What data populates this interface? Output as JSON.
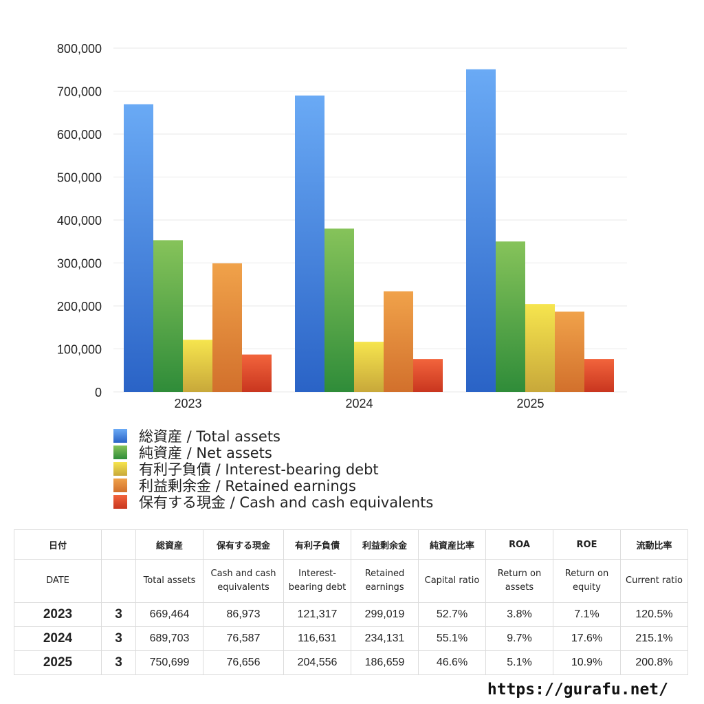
{
  "chart_data": {
    "type": "bar",
    "categories": [
      "2023",
      "2024",
      "2025"
    ],
    "series": [
      {
        "name": "総資産 / Total assets",
        "values": [
          669464,
          689703,
          750699
        ]
      },
      {
        "name": "純資産 / Net assets",
        "values": [
          353000,
          380000,
          350000
        ]
      },
      {
        "name": "有利子負債 / Interest-bearing debt",
        "values": [
          121317,
          116631,
          204556
        ]
      },
      {
        "name": "利益剰余金 / Retained earnings",
        "values": [
          299019,
          234131,
          186659
        ]
      },
      {
        "name": "保有する現金 /  Cash and cash equivalents",
        "values": [
          86973,
          76587,
          76656
        ]
      }
    ],
    "ylim": [
      0,
      800000
    ],
    "yticks": [
      "0",
      "100,000",
      "200,000",
      "300,000",
      "400,000",
      "500,000",
      "600,000",
      "700,000",
      "800,000"
    ],
    "grid": true,
    "legend_position": "bottom",
    "colors": {
      "total_assets": [
        "#6aaaf5",
        "#2a63c6"
      ],
      "net_assets": [
        "#86c35a",
        "#2f8c39"
      ],
      "interest_debt": [
        "#f6e54e",
        "#c8a83a"
      ],
      "retained": [
        "#f0a24a",
        "#d2702c"
      ],
      "cash": [
        "#f2643c",
        "#c9361f"
      ]
    }
  },
  "table": {
    "headers_jp": [
      "日付",
      "",
      "総資産",
      "保有する現金",
      "有利子負債",
      "利益剰余金",
      "純資産比率",
      "ROA",
      "ROE",
      "流動比率"
    ],
    "headers_en": [
      "DATE",
      "",
      "Total assets",
      "Cash and cash equivalents",
      "Interest-bearing debt",
      "Retained earnings",
      "Capital ratio",
      "Return on assets",
      "Return on equity",
      "Current ratio"
    ],
    "rows": [
      [
        "2023",
        "3",
        "669,464",
        "86,973",
        "121,317",
        "299,019",
        "52.7%",
        "3.8%",
        "7.1%",
        "120.5%"
      ],
      [
        "2024",
        "3",
        "689,703",
        "76,587",
        "116,631",
        "234,131",
        "55.1%",
        "9.7%",
        "17.6%",
        "215.1%"
      ],
      [
        "2025",
        "3",
        "750,699",
        "76,656",
        "204,556",
        "186,659",
        "46.6%",
        "5.1%",
        "10.9%",
        "200.8%"
      ]
    ]
  },
  "footer": {
    "url": "https://gurafu.net/"
  }
}
